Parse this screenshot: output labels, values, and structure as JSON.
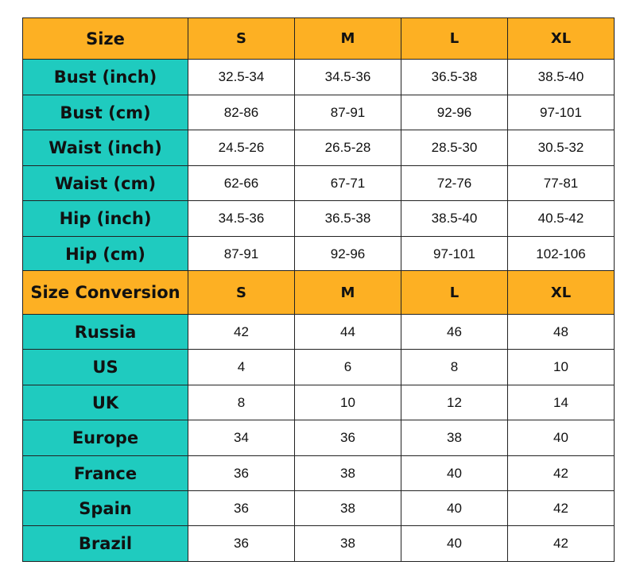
{
  "sections": [
    {
      "header": [
        "Size",
        "S",
        "M",
        "L",
        "XL"
      ],
      "rows": [
        [
          "Bust (inch)",
          "32.5-34",
          "34.5-36",
          "36.5-38",
          "38.5-40"
        ],
        [
          "Bust (cm)",
          "82-86",
          "87-91",
          "92-96",
          "97-101"
        ],
        [
          "Waist (inch)",
          "24.5-26",
          "26.5-28",
          "28.5-30",
          "30.5-32"
        ],
        [
          "Waist (cm)",
          "62-66",
          "67-71",
          "72-76",
          "77-81"
        ],
        [
          "Hip (inch)",
          "34.5-36",
          "36.5-38",
          "38.5-40",
          "40.5-42"
        ],
        [
          "Hip (cm)",
          "87-91",
          "92-96",
          "97-101",
          "102-106"
        ]
      ]
    },
    {
      "header": [
        "Size Conversion",
        "S",
        "M",
        "L",
        "XL"
      ],
      "rows": [
        [
          "Russia",
          "42",
          "44",
          "46",
          "48"
        ],
        [
          "US",
          "4",
          "6",
          "8",
          "10"
        ],
        [
          "UK",
          "8",
          "10",
          "12",
          "14"
        ],
        [
          "Europe",
          "34",
          "36",
          "38",
          "40"
        ],
        [
          "France",
          "36",
          "38",
          "40",
          "42"
        ],
        [
          "Spain",
          "36",
          "38",
          "40",
          "42"
        ],
        [
          "Brazil",
          "36",
          "38",
          "40",
          "42"
        ]
      ]
    }
  ]
}
